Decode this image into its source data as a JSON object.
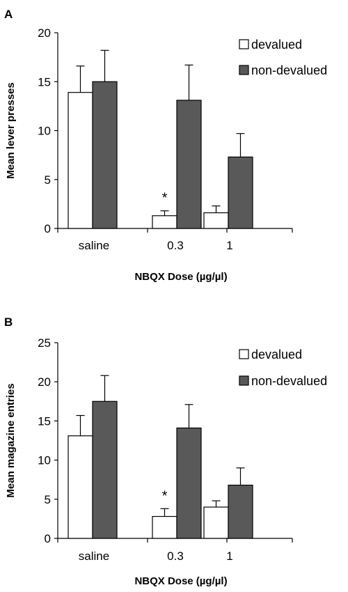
{
  "chart_data": [
    {
      "type": "bar",
      "panel_label": "A",
      "categories": [
        "saline",
        "0.3",
        "1"
      ],
      "series": [
        {
          "name": "devalued",
          "values": [
            13.9,
            1.3,
            1.6
          ],
          "errors": [
            2.7,
            0.5,
            0.7
          ],
          "color": "#ffffff"
        },
        {
          "name": "non-devalued",
          "values": [
            15.0,
            13.1,
            7.3
          ],
          "errors": [
            3.2,
            3.6,
            2.4
          ],
          "color": "#595959"
        }
      ],
      "ylabel": "Mean lever presses",
      "xlabel": "NBQX Dose (µg/µl)",
      "ylim": [
        0,
        20
      ],
      "yticks": [
        0,
        5,
        10,
        15,
        20
      ],
      "annotations": [
        {
          "text": "*",
          "category": "0.3",
          "series": "devalued"
        }
      ],
      "legend": "top-right",
      "grid": false
    },
    {
      "type": "bar",
      "panel_label": "B",
      "categories": [
        "saline",
        "0.3",
        "1"
      ],
      "series": [
        {
          "name": "devalued",
          "values": [
            13.1,
            2.8,
            4.0
          ],
          "errors": [
            2.6,
            1.0,
            0.8
          ],
          "color": "#ffffff"
        },
        {
          "name": "non-devalued",
          "values": [
            17.5,
            14.1,
            6.8
          ],
          "errors": [
            3.3,
            3.0,
            2.2
          ],
          "color": "#595959"
        }
      ],
      "ylabel": "Mean magazine entries",
      "xlabel": "NBQX Dose (µg/µl)",
      "ylim": [
        0,
        25
      ],
      "yticks": [
        0,
        5,
        10,
        15,
        20,
        25
      ],
      "annotations": [
        {
          "text": "*",
          "category": "0.3",
          "series": "devalued"
        }
      ],
      "legend": "top-right",
      "grid": false
    }
  ]
}
